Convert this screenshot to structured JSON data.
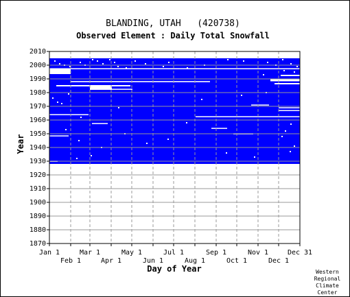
{
  "chart_data": {
    "type": "heatmap",
    "title": "BLANDING, UTAH   (420738)",
    "subtitle": "Observed Element : Daily Total Snowfall",
    "xlabel": "Day of Year",
    "ylabel": "Year",
    "xlim": [
      1,
      365
    ],
    "ylim": [
      1870,
      2010
    ],
    "x_ticks_top": [
      {
        "label": "Jan 1",
        "day": 1
      },
      {
        "label": "Mar 1",
        "day": 60
      },
      {
        "label": "May 1",
        "day": 121
      },
      {
        "label": "Jul 1",
        "day": 182
      },
      {
        "label": "Sep 1",
        "day": 244
      },
      {
        "label": "Nov 1",
        "day": 305
      },
      {
        "label": "Dec 31",
        "day": 365
      }
    ],
    "x_ticks_bottom": [
      {
        "label": "Feb 1",
        "day": 32
      },
      {
        "label": "Apr 1",
        "day": 91
      },
      {
        "label": "Jun 1",
        "day": 152
      },
      {
        "label": "Aug 1",
        "day": 213
      },
      {
        "label": "Oct 1",
        "day": 274
      },
      {
        "label": "Dec 1",
        "day": 335
      }
    ],
    "y_ticks": [
      2010,
      2000,
      1990,
      1980,
      1970,
      1960,
      1950,
      1940,
      1930,
      1920,
      1910,
      1900,
      1890,
      1880,
      1870
    ],
    "record_period": {
      "start_year": 1928,
      "end_year": 2005
    },
    "color_data_present": "#0000ff",
    "color_missing": "#ffffff",
    "missing_segments": [
      {
        "year": 1995.5,
        "start_day": 1,
        "end_day": 31,
        "height_years": 4
      },
      {
        "year": 1997.5,
        "start_day": 1,
        "end_day": 365,
        "height_years": 0.5
      },
      {
        "year": 1988,
        "start_day": 32,
        "end_day": 234,
        "height_years": 0.8
      },
      {
        "year": 1985,
        "start_day": 11,
        "end_day": 118,
        "height_years": 1
      },
      {
        "year": 1983.5,
        "start_day": 60,
        "end_day": 91,
        "height_years": 3
      },
      {
        "year": 1982.5,
        "start_day": 91,
        "end_day": 121,
        "height_years": 0.6
      },
      {
        "year": 1986.5,
        "start_day": 329,
        "end_day": 365,
        "height_years": 1
      },
      {
        "year": 1989,
        "start_day": 323,
        "end_day": 365,
        "height_years": 1.5
      },
      {
        "year": 1992.5,
        "start_day": 338,
        "end_day": 365,
        "height_years": 1
      },
      {
        "year": 1971,
        "start_day": 295,
        "end_day": 320,
        "height_years": 0.6
      },
      {
        "year": 1969,
        "start_day": 335,
        "end_day": 365,
        "height_years": 0.6
      },
      {
        "year": 1967,
        "start_day": 335,
        "end_day": 365,
        "height_years": 0.6
      },
      {
        "year": 1964,
        "start_day": 1,
        "end_day": 57,
        "height_years": 0.6
      },
      {
        "year": 1962.5,
        "start_day": 214,
        "end_day": 365,
        "height_years": 0.6
      },
      {
        "year": 1957.5,
        "start_day": 63,
        "end_day": 85,
        "height_years": 0.6
      },
      {
        "year": 1954,
        "start_day": 237,
        "end_day": 259,
        "height_years": 0.6
      },
      {
        "year": 1950,
        "start_day": 269,
        "end_day": 297,
        "height_years": 0.6
      },
      {
        "year": 1948.5,
        "start_day": 1,
        "end_day": 28,
        "height_years": 0.6
      },
      {
        "year": 1930,
        "start_day": 1,
        "end_day": 12,
        "height_years": 0.6
      }
    ],
    "missing_dots": [
      [
        8,
        2003
      ],
      [
        15,
        2001
      ],
      [
        22,
        2000
      ],
      [
        30,
        1999
      ],
      [
        45,
        2002
      ],
      [
        52,
        2000
      ],
      [
        63,
        2004
      ],
      [
        70,
        2003
      ],
      [
        78,
        2001
      ],
      [
        88,
        2004
      ],
      [
        95,
        2002
      ],
      [
        100,
        1999
      ],
      [
        112,
        1998
      ],
      [
        125,
        2003
      ],
      [
        140,
        2001
      ],
      [
        166,
        1999
      ],
      [
        174,
        2002
      ],
      [
        201,
        1998
      ],
      [
        226,
        2000
      ],
      [
        260,
        2004
      ],
      [
        283,
        2003
      ],
      [
        318,
        2002
      ],
      [
        330,
        2000
      ],
      [
        340,
        2004
      ],
      [
        352,
        2001
      ],
      [
        361,
        1999
      ],
      [
        342,
        1996
      ],
      [
        357,
        1995
      ],
      [
        312,
        1993
      ],
      [
        28,
        1979
      ],
      [
        5,
        1976
      ],
      [
        18,
        1972
      ],
      [
        43,
        1945
      ],
      [
        76,
        1940
      ],
      [
        110,
        1950
      ],
      [
        142,
        1943
      ],
      [
        173,
        1946
      ],
      [
        200,
        1958
      ],
      [
        258,
        1936
      ],
      [
        299,
        1933
      ],
      [
        357,
        1941
      ],
      [
        351,
        1937
      ],
      [
        344,
        1952
      ],
      [
        339,
        1948
      ],
      [
        46,
        1962
      ],
      [
        12,
        1973
      ],
      [
        222,
        1975
      ],
      [
        101,
        1969
      ],
      [
        61,
        1934
      ],
      [
        40,
        1932
      ],
      [
        316,
        1980
      ],
      [
        280,
        1978
      ],
      [
        352,
        1957
      ],
      [
        24,
        1953
      ]
    ],
    "grid": true,
    "grid_style": "dashed-vertical-solid-horizontal"
  },
  "credit": [
    "Western",
    "Regional",
    "Climate",
    "Center"
  ]
}
